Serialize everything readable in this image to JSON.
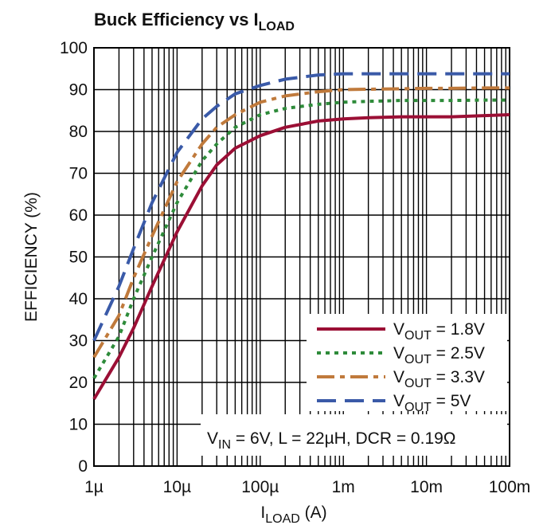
{
  "chart_data": {
    "type": "line",
    "title": "Buck Efficiency vs I",
    "title_sub": "LOAD",
    "xlabel": "I",
    "xlabel_sub": "LOAD",
    "xlabel_suffix": " (A)",
    "ylabel": "EFFICIENCY (%)",
    "xscale": "log",
    "xlim": [
      1e-06,
      0.1
    ],
    "ylim": [
      0,
      100
    ],
    "grid": true,
    "legend_position": "lower-right",
    "x_tick_labels": [
      "1µ",
      "10µ",
      "100µ",
      "1m",
      "10m",
      "100m"
    ],
    "y_tick_labels": [
      "0",
      "10",
      "20",
      "30",
      "40",
      "50",
      "60",
      "70",
      "80",
      "90",
      "100"
    ],
    "annotation": {
      "a": "V",
      "a_sub": "IN",
      "b": " = 6V, L = 22µH, DCR = 0.19Ω"
    },
    "x": [
      1e-06,
      2e-06,
      3e-06,
      5e-06,
      1e-05,
      2e-05,
      3e-05,
      5e-05,
      0.0001,
      0.0002,
      0.0005,
      0.001,
      0.002,
      0.005,
      0.01,
      0.02,
      0.05,
      0.1
    ],
    "series": [
      {
        "name": "V",
        "name_sub": "OUT",
        "name_suffix": " = 1.8V",
        "color": "#9b0f35",
        "dash": "solid",
        "values": [
          16,
          26,
          33,
          43,
          56,
          67,
          72,
          76,
          79,
          81,
          82.5,
          83,
          83.3,
          83.5,
          83.5,
          83.5,
          83.8,
          84
        ]
      },
      {
        "name": "V",
        "name_sub": "OUT",
        "name_suffix": " = 2.5V",
        "color": "#2e8b3a",
        "dash": "dot",
        "values": [
          21,
          31,
          40,
          50,
          63,
          73,
          77,
          81,
          84,
          85.5,
          86.5,
          87,
          87.2,
          87.4,
          87.4,
          87.4,
          87.5,
          87.5
        ]
      },
      {
        "name": "V",
        "name_sub": "OUT",
        "name_suffix": " = 3.3V",
        "color": "#c07a3c",
        "dash": "dashdot",
        "values": [
          26,
          36,
          45,
          55,
          68,
          77,
          81,
          84,
          87,
          88.5,
          89.5,
          90,
          90.1,
          90.2,
          90.3,
          90.3,
          90.4,
          90.4
        ]
      },
      {
        "name": "V",
        "name_sub": "OUT",
        "name_suffix": " = 5V",
        "color": "#3a5aa8",
        "dash": "dash",
        "values": [
          30,
          43,
          52,
          63,
          75,
          83,
          86,
          89,
          91,
          92.5,
          93.5,
          93.8,
          93.8,
          93.8,
          93.8,
          93.8,
          93.8,
          93.8
        ]
      }
    ]
  }
}
